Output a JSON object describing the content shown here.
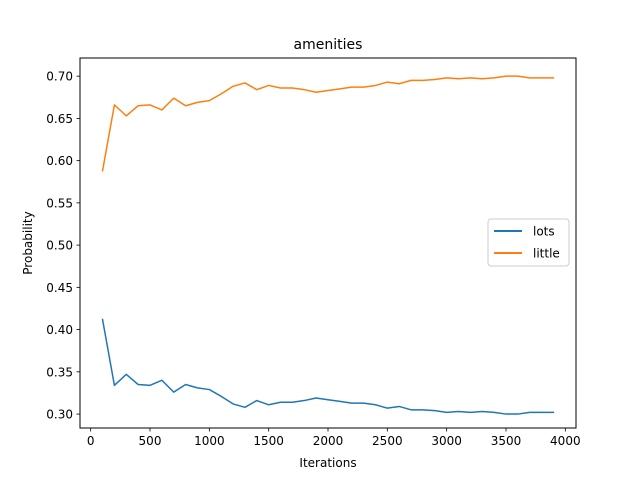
{
  "chart_data": {
    "type": "line",
    "title": "amenities",
    "xlabel": "Iterations",
    "ylabel": "Probability",
    "xlim": [
      -90,
      4090
    ],
    "ylim": [
      0.2835,
      0.7215
    ],
    "xticks": [
      0,
      500,
      1000,
      1500,
      2000,
      2500,
      3000,
      3500,
      4000
    ],
    "yticks": [
      0.3,
      0.35,
      0.4,
      0.45,
      0.5,
      0.55,
      0.6,
      0.65,
      0.7
    ],
    "legend_position": "center-right",
    "grid": false,
    "x": [
      100,
      200,
      300,
      400,
      500,
      600,
      700,
      800,
      900,
      1000,
      1100,
      1200,
      1300,
      1400,
      1500,
      1600,
      1700,
      1800,
      1900,
      2000,
      2100,
      2200,
      2300,
      2400,
      2500,
      2600,
      2700,
      2800,
      2900,
      3000,
      3100,
      3200,
      3300,
      3400,
      3500,
      3600,
      3700,
      3800,
      3900
    ],
    "series": [
      {
        "name": "lots",
        "color": "#1f77b4",
        "values": [
          0.412,
          0.334,
          0.347,
          0.335,
          0.334,
          0.34,
          0.326,
          0.335,
          0.331,
          0.329,
          0.321,
          0.312,
          0.308,
          0.316,
          0.311,
          0.314,
          0.314,
          0.316,
          0.319,
          0.317,
          0.315,
          0.313,
          0.313,
          0.311,
          0.307,
          0.309,
          0.305,
          0.305,
          0.304,
          0.302,
          0.303,
          0.302,
          0.303,
          0.302,
          0.3,
          0.3,
          0.302,
          0.302,
          0.302
        ]
      },
      {
        "name": "little",
        "color": "#ff7f0e",
        "values": [
          0.588,
          0.666,
          0.653,
          0.665,
          0.666,
          0.66,
          0.674,
          0.665,
          0.669,
          0.671,
          0.679,
          0.688,
          0.692,
          0.684,
          0.689,
          0.686,
          0.686,
          0.684,
          0.681,
          0.683,
          0.685,
          0.687,
          0.687,
          0.689,
          0.693,
          0.691,
          0.695,
          0.695,
          0.696,
          0.698,
          0.697,
          0.698,
          0.697,
          0.698,
          0.7,
          0.7,
          0.698,
          0.698,
          0.698
        ]
      }
    ]
  }
}
